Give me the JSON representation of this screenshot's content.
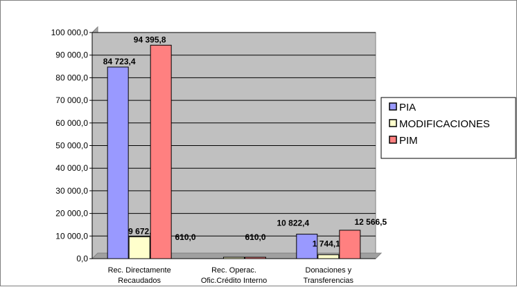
{
  "chart_data": {
    "type": "bar",
    "categories": [
      [
        "Rec. Directamente",
        "Recaudados"
      ],
      [
        "Rec. Operac.",
        "Ofic.Crédito Interno"
      ],
      [
        "Donaciones y",
        "Transferencias"
      ]
    ],
    "series": [
      {
        "name": "PIA",
        "color": "#9999ff",
        "values": [
          84723.4,
          0,
          10822.4
        ],
        "labels": [
          "84 723,4",
          "",
          "10 822,4"
        ]
      },
      {
        "name": "MODIFICACIONES",
        "color": "#ffffcc",
        "values": [
          9672.4,
          610.0,
          1744.1
        ],
        "labels": [
          "9 672,4",
          "610,0",
          "1 744,1"
        ]
      },
      {
        "name": "PIM",
        "color": "#ff8080",
        "values": [
          94395.8,
          610.0,
          12566.5
        ],
        "labels": [
          "94 395,8",
          "610,0",
          "12 566,5"
        ]
      }
    ],
    "ylim": [
      0,
      100000
    ],
    "yticks": [
      {
        "value": 0,
        "label": "0,0"
      },
      {
        "value": 10000,
        "label": "10 000,0"
      },
      {
        "value": 20000,
        "label": "20 000,0"
      },
      {
        "value": 30000,
        "label": "30 000,0"
      },
      {
        "value": 40000,
        "label": "40 000,0"
      },
      {
        "value": 50000,
        "label": "50 000,0"
      },
      {
        "value": 60000,
        "label": "60 000,0"
      },
      {
        "value": 70000,
        "label": "70 000,0"
      },
      {
        "value": 80000,
        "label": "80 000,0"
      },
      {
        "value": 90000,
        "label": "90 000,0"
      },
      {
        "value": 100000,
        "label": "100 000,0"
      }
    ],
    "grid": true,
    "plot_background": "#c0c0c0",
    "legend_position": "right"
  }
}
